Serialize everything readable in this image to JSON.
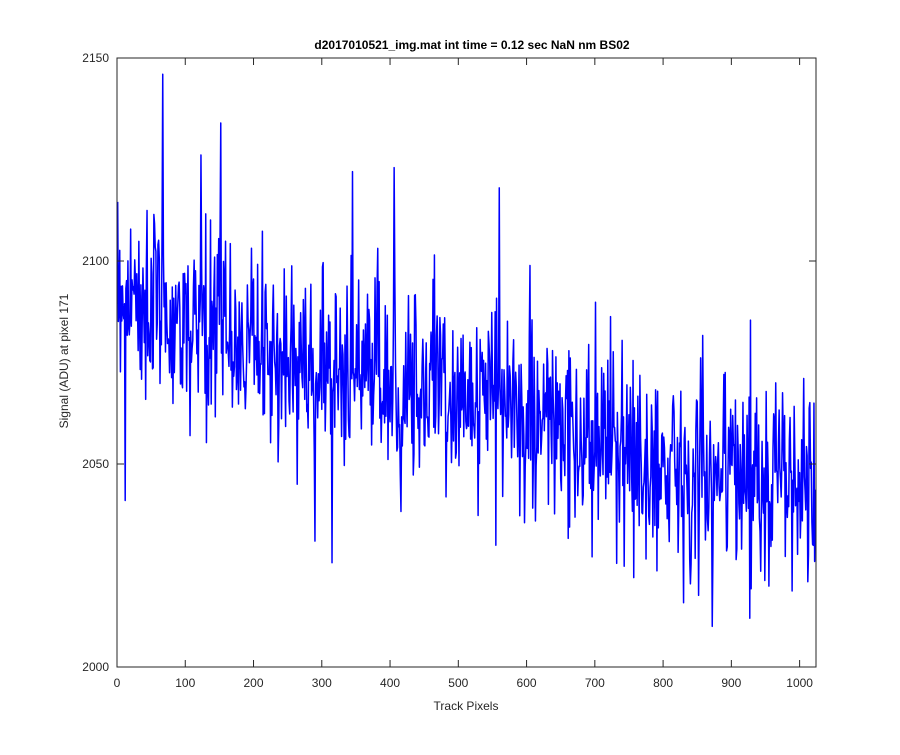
{
  "chart_data": {
    "type": "line",
    "title": "d2017010521_img.mat int time = 0.12 sec  NaN nm BS02",
    "xlabel": "Track Pixels",
    "ylabel": "Signal (ADU) at pixel 171",
    "xlim": [
      0,
      1024
    ],
    "ylim": [
      2000,
      2150
    ],
    "xticks": [
      0,
      100,
      200,
      300,
      400,
      500,
      600,
      700,
      800,
      900,
      1000
    ],
    "yticks": [
      2000,
      2050,
      2100,
      2150
    ],
    "grid": false,
    "legend": "none",
    "series": [
      {
        "color": "#0000ff",
        "x": [
          1,
          50,
          100,
          150,
          200,
          250,
          300,
          350,
          400,
          450,
          500,
          550,
          600,
          650,
          700,
          750,
          800,
          850,
          900,
          950,
          1024
        ],
        "y": [
          2095,
          2088,
          2084,
          2083,
          2080,
          2076,
          2073,
          2072,
          2071,
          2070,
          2068,
          2066,
          2063,
          2058,
          2054,
          2051,
          2050,
          2049,
          2048,
          2047,
          2045
        ],
        "noise_amplitude": 16,
        "sample_count": 1024,
        "peaks": [
          {
            "x": 12,
            "y": 2128
          },
          {
            "x": 67,
            "y": 2146
          },
          {
            "x": 152,
            "y": 2134
          },
          {
            "x": 345,
            "y": 2122
          },
          {
            "x": 406,
            "y": 2123
          },
          {
            "x": 560,
            "y": 2118
          }
        ],
        "troughs": [
          {
            "x": 12,
            "y": 2041
          },
          {
            "x": 290,
            "y": 2031
          },
          {
            "x": 555,
            "y": 2030
          },
          {
            "x": 757,
            "y": 2022
          },
          {
            "x": 872,
            "y": 2010
          },
          {
            "x": 1022,
            "y": 2026
          }
        ]
      }
    ]
  }
}
